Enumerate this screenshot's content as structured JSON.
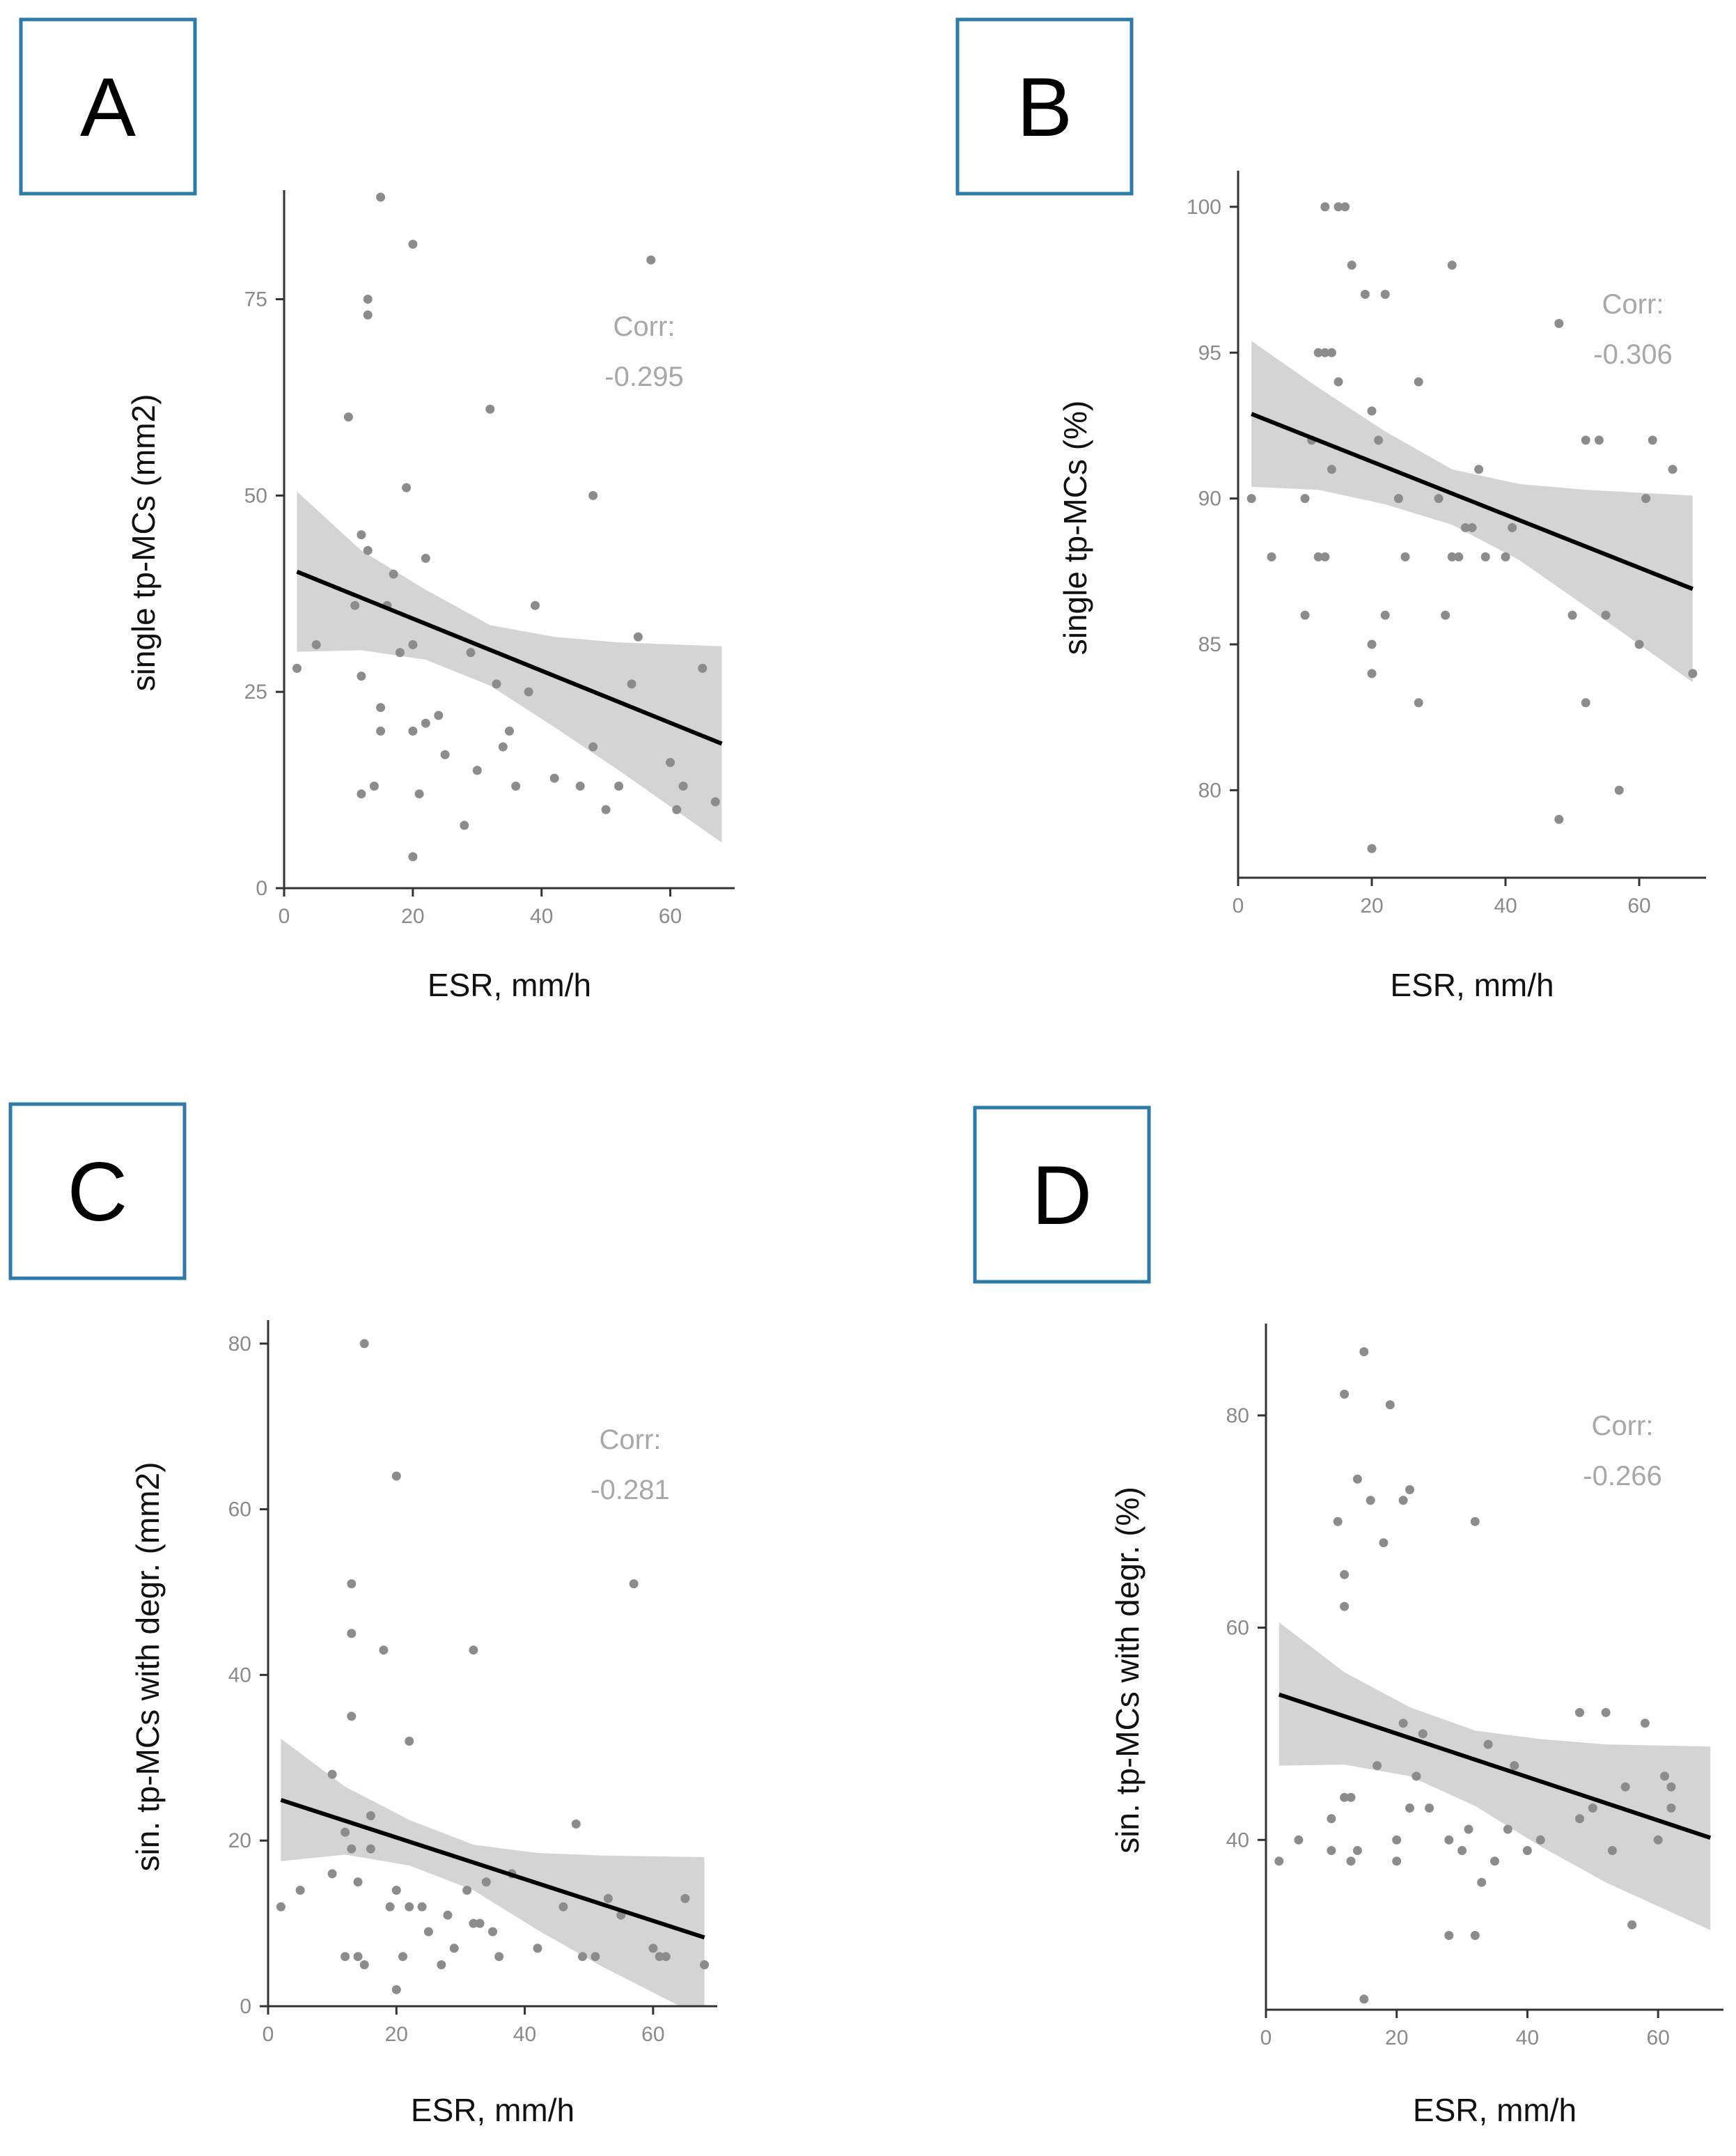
{
  "colors": {
    "box_border": "#2e7aa8",
    "point": "#8c8c8c",
    "band": "#d4d4d4",
    "line": "#000000",
    "axis": "#333333"
  },
  "chart_data": [
    {
      "type": "scatter",
      "panel_label": "A",
      "xlabel": "ESR, mm/h",
      "ylabel": "single tp-MCs (mm2)",
      "xlim": [
        0,
        70
      ],
      "ylim": [
        0,
        88
      ],
      "xticks": [
        0,
        20,
        40,
        60
      ],
      "yticks": [
        0,
        25,
        50,
        75
      ],
      "corr_label": "Corr:",
      "corr_value": "-0.295",
      "fit_line": {
        "x": [
          2,
          68
        ],
        "y": [
          40.3,
          18.4
        ]
      },
      "confidence_band": {
        "x": [
          2,
          12,
          22,
          32,
          42,
          52,
          68
        ],
        "upper": [
          50.5,
          43.0,
          38.0,
          33.5,
          32.0,
          31.3,
          30.8
        ],
        "lower": [
          30.1,
          30.3,
          29.1,
          25.8,
          20.5,
          15.0,
          5.8
        ]
      },
      "points": [
        [
          2,
          28
        ],
        [
          5,
          31
        ],
        [
          10,
          60
        ],
        [
          11,
          36
        ],
        [
          12,
          12
        ],
        [
          12,
          27
        ],
        [
          12,
          45
        ],
        [
          13,
          43
        ],
        [
          13,
          73
        ],
        [
          13,
          75
        ],
        [
          14,
          13
        ],
        [
          15,
          20
        ],
        [
          15,
          23
        ],
        [
          15,
          88
        ],
        [
          16,
          36
        ],
        [
          17,
          40
        ],
        [
          18,
          30
        ],
        [
          19,
          51
        ],
        [
          20,
          4
        ],
        [
          20,
          20
        ],
        [
          20,
          31
        ],
        [
          20,
          82
        ],
        [
          21,
          12
        ],
        [
          22,
          21
        ],
        [
          22,
          42
        ],
        [
          24,
          22
        ],
        [
          25,
          17
        ],
        [
          28,
          8
        ],
        [
          29,
          30
        ],
        [
          30,
          15
        ],
        [
          32,
          61
        ],
        [
          33,
          26
        ],
        [
          34,
          18
        ],
        [
          35,
          20
        ],
        [
          36,
          13
        ],
        [
          38,
          25
        ],
        [
          39,
          36
        ],
        [
          42,
          14
        ],
        [
          46,
          13
        ],
        [
          48,
          18
        ],
        [
          48,
          50
        ],
        [
          50,
          10
        ],
        [
          52,
          13
        ],
        [
          54,
          26
        ],
        [
          55,
          32
        ],
        [
          57,
          80
        ],
        [
          60,
          16
        ],
        [
          61,
          10
        ],
        [
          62,
          13
        ],
        [
          65,
          28
        ],
        [
          67,
          11
        ]
      ]
    },
    {
      "type": "scatter",
      "panel_label": "B",
      "xlabel": "ESR, mm/h",
      "ylabel": "single tp-MCs (%)",
      "xlim": [
        0,
        70
      ],
      "ylim": [
        77,
        101
      ],
      "xticks": [
        0,
        20,
        40,
        60
      ],
      "yticks": [
        80,
        85,
        90,
        95,
        100
      ],
      "corr_label": "Corr:",
      "corr_value": "-0.306",
      "fit_line": {
        "x": [
          2,
          68
        ],
        "y": [
          92.9,
          86.9
        ]
      },
      "confidence_band": {
        "x": [
          2,
          12,
          22,
          32,
          42,
          52,
          68
        ],
        "upper": [
          95.4,
          93.8,
          92.3,
          91.0,
          90.5,
          90.3,
          90.1
        ],
        "lower": [
          90.4,
          90.3,
          89.8,
          89.1,
          87.9,
          86.3,
          83.7
        ]
      },
      "points": [
        [
          2,
          90
        ],
        [
          5,
          88
        ],
        [
          10,
          86
        ],
        [
          10,
          90
        ],
        [
          11,
          92
        ],
        [
          12,
          88
        ],
        [
          12,
          95
        ],
        [
          13,
          88
        ],
        [
          13,
          100
        ],
        [
          13,
          95
        ],
        [
          14,
          91
        ],
        [
          14,
          95
        ],
        [
          15,
          94
        ],
        [
          15,
          100
        ],
        [
          16,
          100
        ],
        [
          17,
          98
        ],
        [
          19,
          97
        ],
        [
          20,
          84
        ],
        [
          20,
          85
        ],
        [
          20,
          78
        ],
        [
          20,
          93
        ],
        [
          21,
          92
        ],
        [
          22,
          86
        ],
        [
          22,
          97
        ],
        [
          24,
          90
        ],
        [
          25,
          88
        ],
        [
          27,
          83
        ],
        [
          27,
          94
        ],
        [
          30,
          90
        ],
        [
          31,
          86
        ],
        [
          32,
          98
        ],
        [
          32,
          88
        ],
        [
          33,
          88
        ],
        [
          34,
          89
        ],
        [
          35,
          89
        ],
        [
          36,
          91
        ],
        [
          37,
          88
        ],
        [
          40,
          88
        ],
        [
          41,
          89
        ],
        [
          48,
          96
        ],
        [
          48,
          79
        ],
        [
          50,
          86
        ],
        [
          52,
          92
        ],
        [
          52,
          83
        ],
        [
          54,
          92
        ],
        [
          55,
          86
        ],
        [
          57,
          80
        ],
        [
          60,
          85
        ],
        [
          61,
          90
        ],
        [
          62,
          92
        ],
        [
          65,
          91
        ],
        [
          68,
          84
        ]
      ]
    },
    {
      "type": "scatter",
      "panel_label": "C",
      "xlabel": "ESR, mm/h",
      "ylabel": "sin. tp-MCs with degr. (mm2)",
      "xlim": [
        0,
        70
      ],
      "ylim": [
        0,
        82
      ],
      "xticks": [
        0,
        20,
        40,
        60
      ],
      "yticks": [
        0,
        20,
        40,
        60,
        80
      ],
      "corr_label": "Corr:",
      "corr_value": "-0.281",
      "fit_line": {
        "x": [
          2,
          68
        ],
        "y": [
          24.9,
          8.3
        ]
      },
      "confidence_band": {
        "x": [
          2,
          12,
          22,
          32,
          42,
          52,
          68
        ],
        "upper": [
          32.3,
          26.5,
          22.5,
          19.5,
          18.5,
          18.2,
          18.0
        ],
        "lower": [
          17.5,
          18.3,
          17.0,
          14.0,
          9.2,
          4.8,
          -1.5
        ]
      },
      "points": [
        [
          2,
          12
        ],
        [
          5,
          14
        ],
        [
          10,
          16
        ],
        [
          10,
          28
        ],
        [
          12,
          6
        ],
        [
          12,
          21
        ],
        [
          13,
          19
        ],
        [
          13,
          35
        ],
        [
          13,
          45
        ],
        [
          13,
          51
        ],
        [
          14,
          6
        ],
        [
          14,
          15
        ],
        [
          15,
          5
        ],
        [
          15,
          80
        ],
        [
          16,
          19
        ],
        [
          16,
          23
        ],
        [
          18,
          43
        ],
        [
          19,
          12
        ],
        [
          20,
          2
        ],
        [
          20,
          14
        ],
        [
          20,
          64
        ],
        [
          21,
          6
        ],
        [
          22,
          12
        ],
        [
          22,
          32
        ],
        [
          24,
          12
        ],
        [
          25,
          9
        ],
        [
          27,
          5
        ],
        [
          28,
          11
        ],
        [
          29,
          7
        ],
        [
          31,
          14
        ],
        [
          32,
          10
        ],
        [
          32,
          43
        ],
        [
          33,
          10
        ],
        [
          34,
          15
        ],
        [
          35,
          9
        ],
        [
          36,
          6
        ],
        [
          38,
          16
        ],
        [
          42,
          7
        ],
        [
          46,
          12
        ],
        [
          48,
          22
        ],
        [
          49,
          6
        ],
        [
          51,
          6
        ],
        [
          53,
          13
        ],
        [
          55,
          11
        ],
        [
          57,
          51
        ],
        [
          60,
          7
        ],
        [
          61,
          6
        ],
        [
          62,
          6
        ],
        [
          65,
          13
        ],
        [
          68,
          5
        ]
      ]
    },
    {
      "type": "scatter",
      "panel_label": "D",
      "xlabel": "ESR, mm/h",
      "ylabel": "sin. tp-MCs with degr. (%)",
      "xlim": [
        0,
        70
      ],
      "ylim": [
        24,
        88
      ],
      "xticks": [
        0,
        20,
        40,
        60
      ],
      "yticks": [
        40,
        60,
        80
      ],
      "corr_label": "Corr:",
      "corr_value": "-0.266",
      "fit_line": {
        "x": [
          2,
          68
        ],
        "y": [
          53.7,
          40.2
        ]
      },
      "confidence_band": {
        "x": [
          2,
          12,
          22,
          32,
          42,
          52,
          68
        ],
        "upper": [
          60.5,
          55.8,
          52.5,
          50.3,
          49.5,
          49.0,
          48.8
        ],
        "lower": [
          47.0,
          47.1,
          46.0,
          43.2,
          39.4,
          36.0,
          31.5
        ]
      },
      "points": [
        [
          2,
          38
        ],
        [
          5,
          40
        ],
        [
          10,
          42
        ],
        [
          10,
          39
        ],
        [
          11,
          70
        ],
        [
          12,
          44
        ],
        [
          12,
          62
        ],
        [
          12,
          65
        ],
        [
          12,
          82
        ],
        [
          13,
          38
        ],
        [
          13,
          44
        ],
        [
          14,
          39
        ],
        [
          14,
          74
        ],
        [
          15,
          86
        ],
        [
          15,
          25
        ],
        [
          16,
          72
        ],
        [
          17,
          47
        ],
        [
          18,
          68
        ],
        [
          19,
          81
        ],
        [
          20,
          38
        ],
        [
          20,
          40
        ],
        [
          21,
          72
        ],
        [
          21,
          51
        ],
        [
          22,
          43
        ],
        [
          22,
          73
        ],
        [
          23,
          46
        ],
        [
          24,
          50
        ],
        [
          25,
          43
        ],
        [
          28,
          31
        ],
        [
          28,
          40
        ],
        [
          30,
          39
        ],
        [
          31,
          41
        ],
        [
          32,
          31
        ],
        [
          32,
          70
        ],
        [
          33,
          36
        ],
        [
          34,
          49
        ],
        [
          35,
          38
        ],
        [
          37,
          41
        ],
        [
          38,
          47
        ],
        [
          40,
          39
        ],
        [
          42,
          40
        ],
        [
          48,
          52
        ],
        [
          48,
          42
        ],
        [
          50,
          43
        ],
        [
          52,
          52
        ],
        [
          53,
          39
        ],
        [
          55,
          45
        ],
        [
          56,
          32
        ],
        [
          58,
          51
        ],
        [
          60,
          40
        ],
        [
          61,
          46
        ],
        [
          62,
          43
        ],
        [
          62,
          45
        ]
      ]
    }
  ]
}
